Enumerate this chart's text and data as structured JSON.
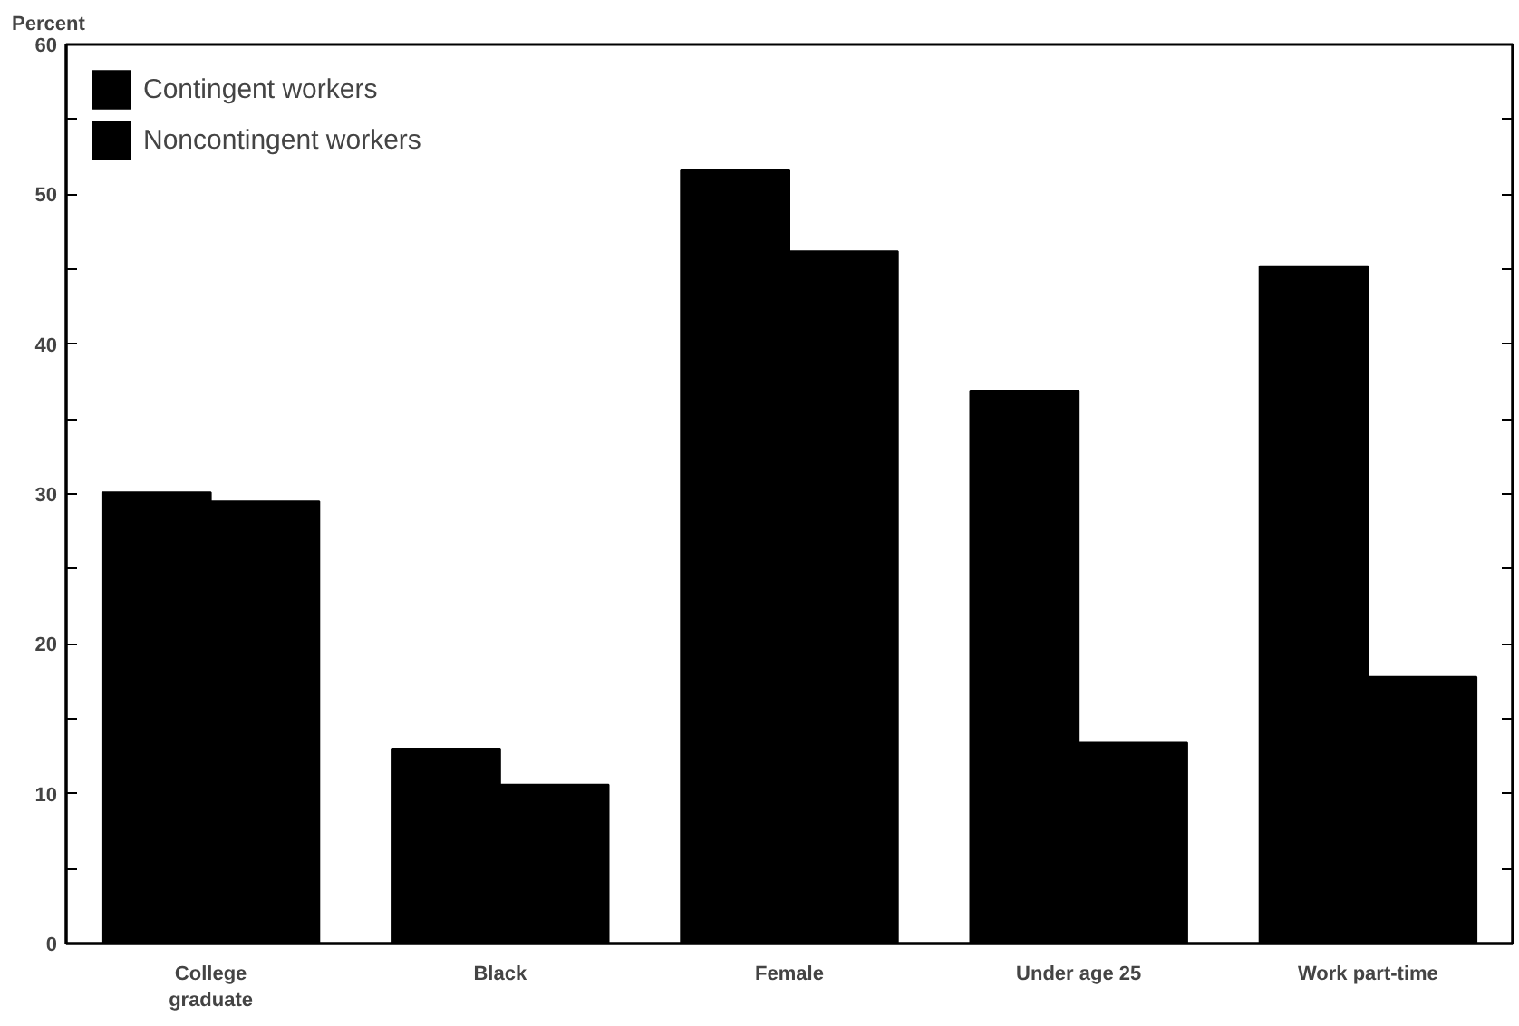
{
  "chart_data": {
    "type": "bar",
    "ylabel": "Percent",
    "categories": [
      "College graduate",
      "Black",
      "Female",
      "Under age 25",
      "Work part-time"
    ],
    "series": [
      {
        "name": "Contingent workers",
        "color": "#000000",
        "values": [
          30.1,
          13.0,
          51.6,
          36.9,
          45.2
        ]
      },
      {
        "name": "Noncontingent workers",
        "color": "#000000",
        "values": [
          29.5,
          10.6,
          46.2,
          13.4,
          17.8
        ]
      }
    ],
    "ylim": [
      0,
      60
    ],
    "yticks": [
      0,
      {
        "value": 5,
        "label": null
      },
      10,
      {
        "value": 15,
        "label": null
      },
      20,
      {
        "value": 25,
        "label": null
      },
      30,
      {
        "value": 35,
        "label": null
      },
      40,
      {
        "value": 45,
        "label": null
      },
      50,
      {
        "value": 55,
        "label": null
      },
      60
    ],
    "grid": false,
    "legend": "top left"
  }
}
